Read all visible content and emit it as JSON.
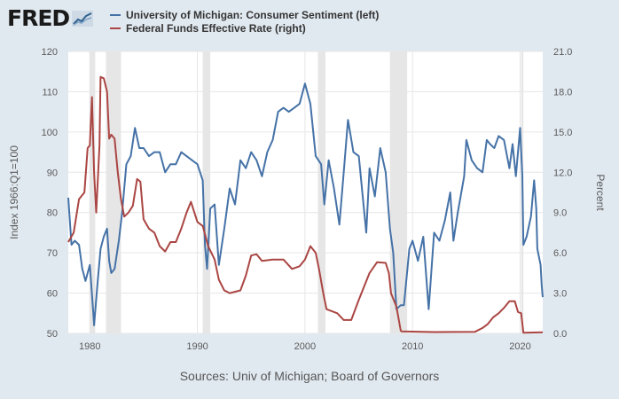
{
  "brand": {
    "logo_text": "FRED",
    "logo_icon": "fred-chart-logo-icon"
  },
  "colors": {
    "background": "#e1e9f0",
    "plot_background": "#ffffff",
    "grid": "#e6e6e6",
    "recession": "#e6e6e6",
    "series_left": "#4572a7",
    "series_right": "#aa4643",
    "axis_text": "#5a5a5a"
  },
  "chart_data": {
    "type": "line",
    "xlim": [
      1978.0,
      2022.1
    ],
    "x_ticks": [
      1980,
      1990,
      2000,
      2010,
      2020
    ],
    "left_axis": {
      "label": "Index 1966:Q1=100",
      "ylim": [
        50,
        120
      ],
      "ticks": [
        50,
        60,
        70,
        80,
        90,
        100,
        110,
        120
      ]
    },
    "right_axis": {
      "label": "Percent",
      "ylim": [
        0,
        21
      ],
      "ticks": [
        "0.0",
        "3.0",
        "6.0",
        "9.0",
        "12.0",
        "15.0",
        "18.0",
        "21.0"
      ]
    },
    "grid": true,
    "legend_position": "top-left",
    "recessions": [
      [
        1980.0,
        1980.5
      ],
      [
        1981.5,
        1982.9
      ],
      [
        1990.5,
        1991.2
      ],
      [
        2001.2,
        2001.9
      ],
      [
        2007.9,
        2009.5
      ],
      [
        2020.1,
        2020.3
      ]
    ],
    "series": [
      {
        "name": "University of Michigan: Consumer Sentiment (left)",
        "axis": "left",
        "color": "#4572a7",
        "points": [
          [
            1978.0,
            83.7
          ],
          [
            1978.3,
            72
          ],
          [
            1978.6,
            73
          ],
          [
            1979.0,
            72
          ],
          [
            1979.3,
            66
          ],
          [
            1979.6,
            63
          ],
          [
            1980.0,
            67
          ],
          [
            1980.3,
            56
          ],
          [
            1980.4,
            52
          ],
          [
            1980.7,
            62
          ],
          [
            1981.0,
            71
          ],
          [
            1981.3,
            74
          ],
          [
            1981.6,
            76
          ],
          [
            1981.8,
            68
          ],
          [
            1982.0,
            65
          ],
          [
            1982.3,
            66
          ],
          [
            1982.7,
            73
          ],
          [
            1983.0,
            80
          ],
          [
            1983.4,
            92
          ],
          [
            1983.8,
            94
          ],
          [
            1984.2,
            101
          ],
          [
            1984.6,
            96
          ],
          [
            1985.0,
            96
          ],
          [
            1985.5,
            94
          ],
          [
            1986.0,
            95
          ],
          [
            1986.5,
            95
          ],
          [
            1987.0,
            90
          ],
          [
            1987.5,
            92
          ],
          [
            1988.0,
            92
          ],
          [
            1988.5,
            95
          ],
          [
            1989.0,
            94
          ],
          [
            1989.5,
            93
          ],
          [
            1990.0,
            92
          ],
          [
            1990.5,
            88
          ],
          [
            1990.7,
            72
          ],
          [
            1990.9,
            66
          ],
          [
            1991.2,
            81
          ],
          [
            1991.6,
            82
          ],
          [
            1992.0,
            67
          ],
          [
            1992.5,
            76
          ],
          [
            1993.0,
            86
          ],
          [
            1993.5,
            82
          ],
          [
            1994.0,
            93
          ],
          [
            1994.5,
            91
          ],
          [
            1995.0,
            95
          ],
          [
            1995.5,
            93
          ],
          [
            1996.0,
            89
          ],
          [
            1996.5,
            95
          ],
          [
            1997.0,
            98
          ],
          [
            1997.5,
            105
          ],
          [
            1998.0,
            106
          ],
          [
            1998.5,
            105
          ],
          [
            1999.0,
            106
          ],
          [
            1999.5,
            107
          ],
          [
            2000.0,
            112
          ],
          [
            2000.5,
            107
          ],
          [
            2001.0,
            94
          ],
          [
            2001.5,
            92
          ],
          [
            2001.8,
            82
          ],
          [
            2002.2,
            93
          ],
          [
            2002.7,
            86
          ],
          [
            2003.2,
            77
          ],
          [
            2003.6,
            90
          ],
          [
            2004.0,
            103
          ],
          [
            2004.5,
            95
          ],
          [
            2005.0,
            94
          ],
          [
            2005.7,
            75
          ],
          [
            2006.0,
            91
          ],
          [
            2006.5,
            84
          ],
          [
            2007.0,
            96
          ],
          [
            2007.5,
            90
          ],
          [
            2007.9,
            76
          ],
          [
            2008.2,
            70
          ],
          [
            2008.5,
            56
          ],
          [
            2008.9,
            57
          ],
          [
            2009.2,
            57
          ],
          [
            2009.7,
            71
          ],
          [
            2010.0,
            73
          ],
          [
            2010.5,
            68
          ],
          [
            2011.0,
            74
          ],
          [
            2011.5,
            56
          ],
          [
            2012.0,
            75
          ],
          [
            2012.5,
            73
          ],
          [
            2013.0,
            78
          ],
          [
            2013.5,
            85
          ],
          [
            2013.8,
            73
          ],
          [
            2014.2,
            80
          ],
          [
            2014.8,
            89
          ],
          [
            2015.0,
            98
          ],
          [
            2015.5,
            93
          ],
          [
            2016.0,
            91
          ],
          [
            2016.5,
            90
          ],
          [
            2016.9,
            98
          ],
          [
            2017.2,
            97
          ],
          [
            2017.6,
            96
          ],
          [
            2018.0,
            99
          ],
          [
            2018.5,
            98
          ],
          [
            2019.0,
            91
          ],
          [
            2019.3,
            97
          ],
          [
            2019.6,
            89
          ],
          [
            2020.0,
            101
          ],
          [
            2020.2,
            89
          ],
          [
            2020.3,
            72
          ],
          [
            2020.6,
            74
          ],
          [
            2021.0,
            79
          ],
          [
            2021.3,
            88
          ],
          [
            2021.5,
            81
          ],
          [
            2021.6,
            71
          ],
          [
            2021.9,
            67
          ],
          [
            2022.0,
            62
          ],
          [
            2022.1,
            59
          ]
        ]
      },
      {
        "name": "Federal Funds Effective Rate (right)",
        "axis": "right",
        "color": "#aa4643",
        "points": [
          [
            1978.0,
            6.8
          ],
          [
            1978.5,
            7.5
          ],
          [
            1979.0,
            10.0
          ],
          [
            1979.5,
            10.5
          ],
          [
            1979.8,
            13.8
          ],
          [
            1980.0,
            14.0
          ],
          [
            1980.2,
            17.6
          ],
          [
            1980.4,
            12.0
          ],
          [
            1980.6,
            9.0
          ],
          [
            1980.9,
            14.0
          ],
          [
            1981.0,
            19.1
          ],
          [
            1981.3,
            19.0
          ],
          [
            1981.6,
            18.0
          ],
          [
            1981.8,
            14.5
          ],
          [
            1982.0,
            14.8
          ],
          [
            1982.3,
            14.5
          ],
          [
            1982.6,
            12.0
          ],
          [
            1982.9,
            10.0
          ],
          [
            1983.2,
            8.7
          ],
          [
            1983.6,
            9.0
          ],
          [
            1984.0,
            9.5
          ],
          [
            1984.4,
            11.5
          ],
          [
            1984.7,
            11.3
          ],
          [
            1985.0,
            8.5
          ],
          [
            1985.5,
            7.8
          ],
          [
            1986.0,
            7.5
          ],
          [
            1986.5,
            6.5
          ],
          [
            1987.0,
            6.1
          ],
          [
            1987.5,
            6.8
          ],
          [
            1988.0,
            6.8
          ],
          [
            1988.5,
            7.8
          ],
          [
            1989.0,
            9.0
          ],
          [
            1989.4,
            9.8
          ],
          [
            1990.0,
            8.3
          ],
          [
            1990.5,
            8.0
          ],
          [
            1991.0,
            6.5
          ],
          [
            1991.6,
            5.5
          ],
          [
            1992.0,
            4.0
          ],
          [
            1992.5,
            3.2
          ],
          [
            1993.0,
            3.0
          ],
          [
            1994.0,
            3.2
          ],
          [
            1994.5,
            4.3
          ],
          [
            1995.0,
            5.8
          ],
          [
            1995.5,
            5.9
          ],
          [
            1996.0,
            5.4
          ],
          [
            1997.0,
            5.5
          ],
          [
            1998.0,
            5.5
          ],
          [
            1998.8,
            4.8
          ],
          [
            1999.5,
            5.0
          ],
          [
            2000.0,
            5.5
          ],
          [
            2000.5,
            6.5
          ],
          [
            2001.0,
            6.0
          ],
          [
            2001.3,
            4.8
          ],
          [
            2001.7,
            3.0
          ],
          [
            2002.0,
            1.8
          ],
          [
            2003.0,
            1.5
          ],
          [
            2003.6,
            1.0
          ],
          [
            2004.3,
            1.0
          ],
          [
            2005.0,
            2.5
          ],
          [
            2006.0,
            4.5
          ],
          [
            2006.7,
            5.3
          ],
          [
            2007.5,
            5.25
          ],
          [
            2007.8,
            4.5
          ],
          [
            2008.0,
            3.0
          ],
          [
            2008.5,
            2.0
          ],
          [
            2008.9,
            0.2
          ],
          [
            2009.0,
            0.15
          ],
          [
            2012.0,
            0.1
          ],
          [
            2015.8,
            0.12
          ],
          [
            2016.5,
            0.4
          ],
          [
            2017.0,
            0.7
          ],
          [
            2017.5,
            1.2
          ],
          [
            2018.0,
            1.5
          ],
          [
            2018.5,
            1.9
          ],
          [
            2019.0,
            2.4
          ],
          [
            2019.5,
            2.4
          ],
          [
            2019.8,
            1.6
          ],
          [
            2020.1,
            1.5
          ],
          [
            2020.3,
            0.05
          ],
          [
            2022.1,
            0.08
          ]
        ]
      }
    ]
  },
  "sources": "Sources: Univ of Michigan; Board of Governors"
}
